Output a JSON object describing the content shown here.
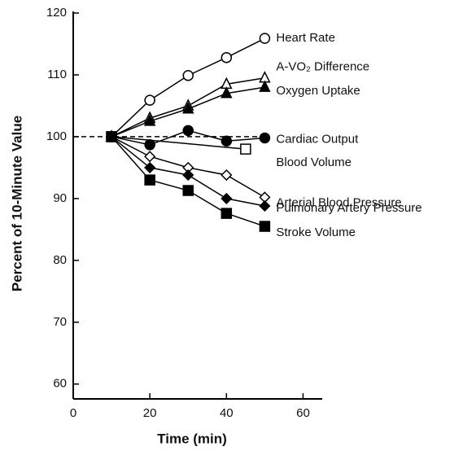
{
  "chart_data": {
    "type": "line",
    "xlabel": "Time (min)",
    "ylabel": "Percent of 10-Minute Value",
    "xlim": [
      0,
      65
    ],
    "ylim": [
      57.6,
      120
    ],
    "xticks": [
      0,
      20,
      40,
      60
    ],
    "yticks": [
      60,
      70,
      80,
      90,
      100,
      110,
      120
    ],
    "reference_line": 100,
    "series": [
      {
        "name": "Heart Rate",
        "marker": "circle",
        "filled": false,
        "x": [
          10,
          20,
          30,
          40,
          50
        ],
        "values": [
          100,
          105.9,
          109.9,
          112.8,
          115.9
        ]
      },
      {
        "name": "A-VO₂ Difference",
        "marker": "triangle",
        "filled": false,
        "x": [
          10,
          20,
          30,
          40,
          50
        ],
        "values": [
          100,
          103,
          105,
          108.5,
          109.5
        ]
      },
      {
        "name": "Oxygen Uptake",
        "marker": "triangle",
        "filled": true,
        "x": [
          10,
          20,
          30,
          40,
          50
        ],
        "values": [
          100,
          102.5,
          104.5,
          107,
          108
        ]
      },
      {
        "name": "Cardiac Output",
        "marker": "circle",
        "filled": true,
        "x": [
          10,
          20,
          30,
          40,
          50
        ],
        "values": [
          100,
          98.7,
          101,
          99.3,
          99.8
        ]
      },
      {
        "name": "Blood Volume",
        "marker": "square",
        "filled": false,
        "x": [
          10,
          45
        ],
        "values": [
          100,
          98
        ]
      },
      {
        "name": "Arterial Blood Pressure",
        "marker": "diamond",
        "filled": false,
        "x": [
          10,
          20,
          30,
          40,
          50
        ],
        "values": [
          100,
          96.8,
          95,
          93.8,
          90.2
        ]
      },
      {
        "name": "Pulmonary Artery Pressure",
        "marker": "diamond",
        "filled": true,
        "x": [
          10,
          20,
          30,
          40,
          50
        ],
        "values": [
          100,
          95,
          93.8,
          90,
          88.8
        ]
      },
      {
        "name": "Stroke Volume",
        "marker": "square",
        "filled": true,
        "x": [
          10,
          20,
          30,
          40,
          50
        ],
        "values": [
          100,
          93,
          91.3,
          87.6,
          85.5
        ]
      }
    ]
  }
}
